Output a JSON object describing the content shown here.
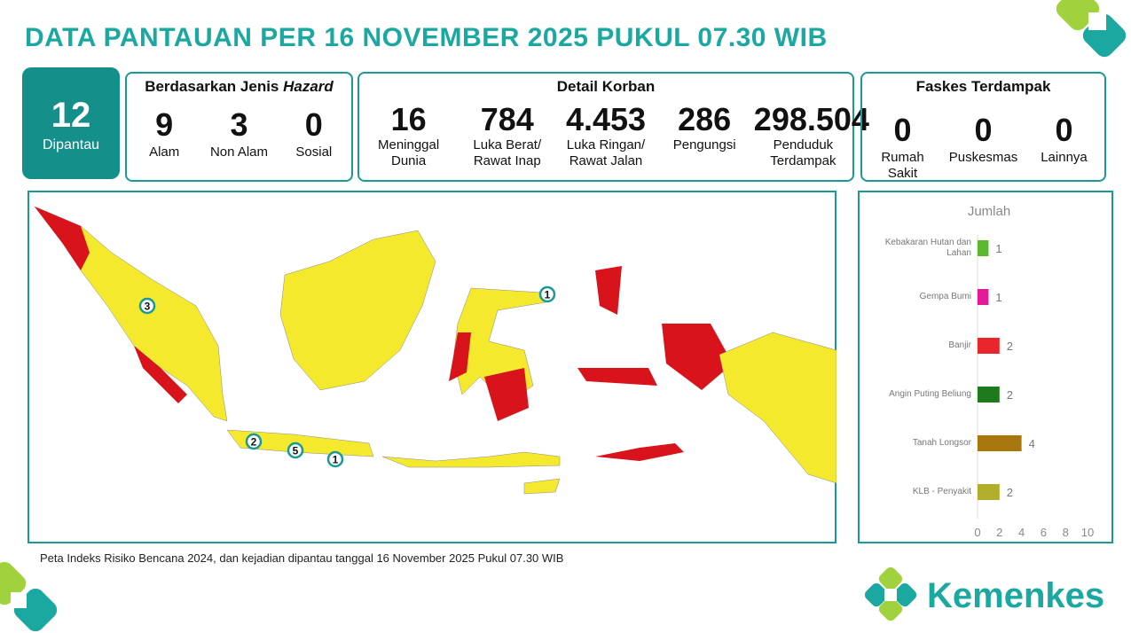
{
  "header": {
    "title": "DATA PANTAUAN PER 16 NOVEMBER 2025 PUKUL 07.30 WIB"
  },
  "monitored": {
    "value": "12",
    "label": "Dipantau"
  },
  "hazard": {
    "title_prefix": "Berdasarkan Jenis",
    "title_emphasis": "Hazard",
    "items": [
      {
        "value": "9",
        "label": "Alam"
      },
      {
        "value": "3",
        "label": "Non Alam"
      },
      {
        "value": "0",
        "label": "Sosial"
      }
    ]
  },
  "casualties": {
    "title": "Detail Korban",
    "items": [
      {
        "value": "16",
        "label": "Meninggal Dunia"
      },
      {
        "value": "784",
        "label": "Luka Berat/ Rawat Inap"
      },
      {
        "value": "4.453",
        "label": "Luka Ringan/ Rawat Jalan"
      },
      {
        "value": "286",
        "label": "Pengungsi"
      },
      {
        "value": "298.504",
        "label": "Penduduk Terdampak"
      }
    ]
  },
  "facilities": {
    "title": "Faskes Terdampak",
    "items": [
      {
        "value": "0",
        "label": "Rumah Sakit"
      },
      {
        "value": "0",
        "label": "Puskesmas"
      },
      {
        "value": "0",
        "label": "Lainnya"
      }
    ]
  },
  "map": {
    "markers": [
      {
        "label": "3"
      },
      {
        "label": "1"
      },
      {
        "label": "2"
      },
      {
        "label": "5"
      },
      {
        "label": "1"
      }
    ],
    "caption": "Peta Indeks Risiko Bencana 2024, dan kejadian dipantau tanggal 16 November 2025 Pukul 07.30 WIB"
  },
  "chart_data": {
    "type": "bar",
    "orientation": "horizontal",
    "title": "Jumlah",
    "categories": [
      "Kebakaran Hutan dan Lahan",
      "Gempa Bumi",
      "Banjir",
      "Angin Puting Beliung",
      "Tanah Longsor",
      "KLB - Penyakit"
    ],
    "values": [
      1,
      1,
      2,
      2,
      4,
      2
    ],
    "colors": [
      "#5cb82e",
      "#e5189a",
      "#e8262b",
      "#1d7a1d",
      "#a8780f",
      "#b3ad2c"
    ],
    "xlim": [
      0,
      10
    ],
    "xticks": [
      0,
      2,
      4,
      6,
      8,
      10
    ]
  },
  "logo": {
    "text": "Kemenkes"
  }
}
